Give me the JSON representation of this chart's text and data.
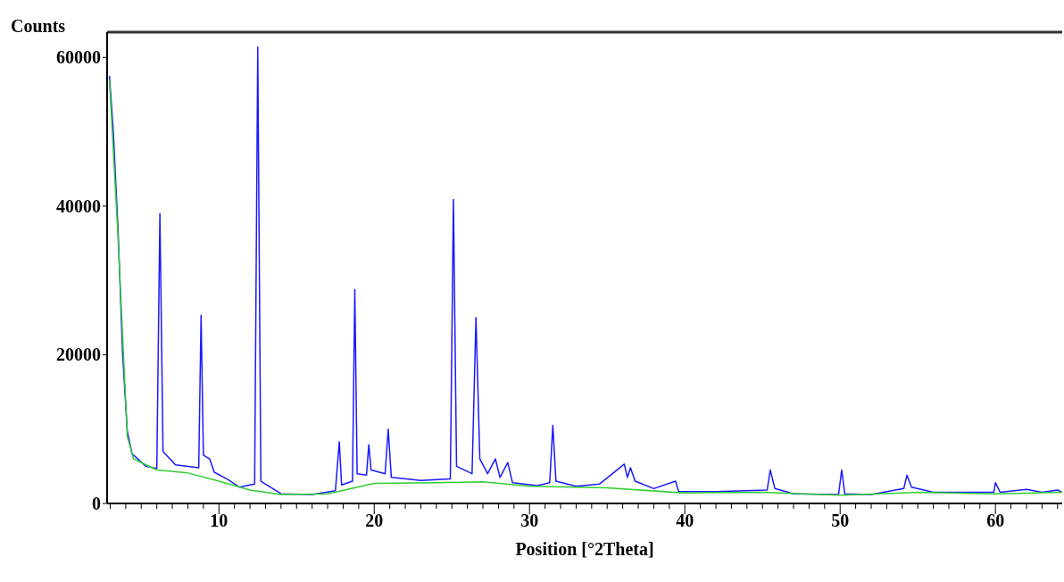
{
  "chart_data": {
    "type": "line",
    "xlabel": "Position [°2Theta]",
    "ylabel": "Counts",
    "xlim": [
      2.8,
      64.3
    ],
    "ylim": [
      0,
      63400
    ],
    "xticks": [
      {
        "value": 3,
        "label": null
      },
      {
        "value": 4,
        "label": null
      },
      {
        "value": 5,
        "label": null
      },
      {
        "value": 6,
        "label": null
      },
      {
        "value": 7,
        "label": null
      },
      {
        "value": 8,
        "label": null
      },
      {
        "value": 9,
        "label": null
      },
      10,
      {
        "value": 11,
        "label": null
      },
      {
        "value": 12,
        "label": null
      },
      {
        "value": 13,
        "label": null
      },
      {
        "value": 14,
        "label": null
      },
      {
        "value": 15,
        "label": null
      },
      {
        "value": 16,
        "label": null
      },
      {
        "value": 17,
        "label": null
      },
      {
        "value": 18,
        "label": null
      },
      {
        "value": 19,
        "label": null
      },
      20,
      {
        "value": 21,
        "label": null
      },
      {
        "value": 22,
        "label": null
      },
      {
        "value": 23,
        "label": null
      },
      {
        "value": 24,
        "label": null
      },
      {
        "value": 25,
        "label": null
      },
      {
        "value": 26,
        "label": null
      },
      {
        "value": 27,
        "label": null
      },
      {
        "value": 28,
        "label": null
      },
      {
        "value": 29,
        "label": null
      },
      30,
      {
        "value": 31,
        "label": null
      },
      {
        "value": 32,
        "label": null
      },
      {
        "value": 33,
        "label": null
      },
      {
        "value": 34,
        "label": null
      },
      {
        "value": 35,
        "label": null
      },
      {
        "value": 36,
        "label": null
      },
      {
        "value": 37,
        "label": null
      },
      {
        "value": 38,
        "label": null
      },
      {
        "value": 39,
        "label": null
      },
      40,
      {
        "value": 41,
        "label": null
      },
      {
        "value": 42,
        "label": null
      },
      {
        "value": 43,
        "label": null
      },
      {
        "value": 44,
        "label": null
      },
      {
        "value": 45,
        "label": null
      },
      {
        "value": 46,
        "label": null
      },
      {
        "value": 47,
        "label": null
      },
      {
        "value": 48,
        "label": null
      },
      {
        "value": 49,
        "label": null
      },
      50,
      {
        "value": 51,
        "label": null
      },
      {
        "value": 52,
        "label": null
      },
      {
        "value": 53,
        "label": null
      },
      {
        "value": 54,
        "label": null
      },
      {
        "value": 55,
        "label": null
      },
      {
        "value": 56,
        "label": null
      },
      {
        "value": 57,
        "label": null
      },
      {
        "value": 58,
        "label": null
      },
      {
        "value": 59,
        "label": null
      },
      60,
      {
        "value": 61,
        "label": null
      },
      {
        "value": 62,
        "label": null
      },
      {
        "value": 63,
        "label": null
      },
      {
        "value": 64,
        "label": null
      }
    ],
    "yticks": [
      0,
      20000,
      40000,
      60000
    ],
    "grid": false,
    "legend": false,
    "marker": "none",
    "line_style": "solid",
    "series": [
      {
        "color": "#1a1aff",
        "x": [
          2.95,
          3.2,
          3.5,
          3.8,
          4.1,
          4.4,
          5.3,
          6.0,
          6.2,
          6.4,
          7.2,
          8.7,
          8.85,
          9.0,
          9.4,
          9.7,
          10.6,
          11.3,
          12.3,
          12.5,
          12.7,
          14,
          16,
          17.5,
          17.75,
          17.9,
          18.6,
          18.75,
          18.9,
          19.5,
          19.65,
          19.8,
          20.7,
          20.9,
          21.1,
          23,
          24.9,
          25.1,
          25.3,
          26.3,
          26.55,
          26.8,
          27.3,
          27.8,
          28.1,
          28.6,
          28.9,
          30.5,
          31.3,
          31.5,
          31.7,
          33,
          34.5,
          36.1,
          36.3,
          36.5,
          36.8,
          38,
          39.4,
          39.6,
          42,
          45.3,
          45.5,
          45.8,
          47,
          49.9,
          50.1,
          50.3,
          52,
          54.1,
          54.3,
          54.6,
          56,
          59.9,
          60.0,
          60.3,
          62,
          63,
          64,
          64.3
        ],
        "values": [
          57500,
          50000,
          37000,
          20000,
          9700,
          6700,
          5000,
          4700,
          39000,
          7000,
          5200,
          4800,
          25300,
          6500,
          6000,
          4200,
          3200,
          2200,
          2600,
          61400,
          3000,
          1300,
          1200,
          1700,
          8300,
          2500,
          3000,
          28800,
          4000,
          3800,
          7900,
          4500,
          4000,
          10000,
          3500,
          3100,
          3300,
          40900,
          5000,
          4000,
          25000,
          6000,
          4000,
          6000,
          3500,
          5500,
          2800,
          2400,
          2800,
          10500,
          3000,
          2300,
          2600,
          5300,
          3500,
          4800,
          3000,
          2000,
          3000,
          1600,
          1600,
          1800,
          4500,
          2000,
          1300,
          1200,
          4500,
          1300,
          1200,
          2000,
          3800,
          2200,
          1500,
          1500,
          2800,
          1500,
          1900,
          1500,
          1800,
          1500
        ]
      },
      {
        "color": "#33cc33",
        "x": [
          2.95,
          3.5,
          4.1,
          4.5,
          6,
          8,
          10,
          12,
          14,
          17,
          20,
          24,
          27,
          30,
          35,
          40,
          45,
          50,
          55,
          60,
          64.3
        ],
        "values": [
          57000,
          36000,
          9000,
          6000,
          4500,
          4100,
          3000,
          1800,
          1200,
          1300,
          2700,
          2800,
          2900,
          2300,
          2100,
          1400,
          1500,
          1100,
          1500,
          1300,
          1500
        ]
      }
    ]
  }
}
